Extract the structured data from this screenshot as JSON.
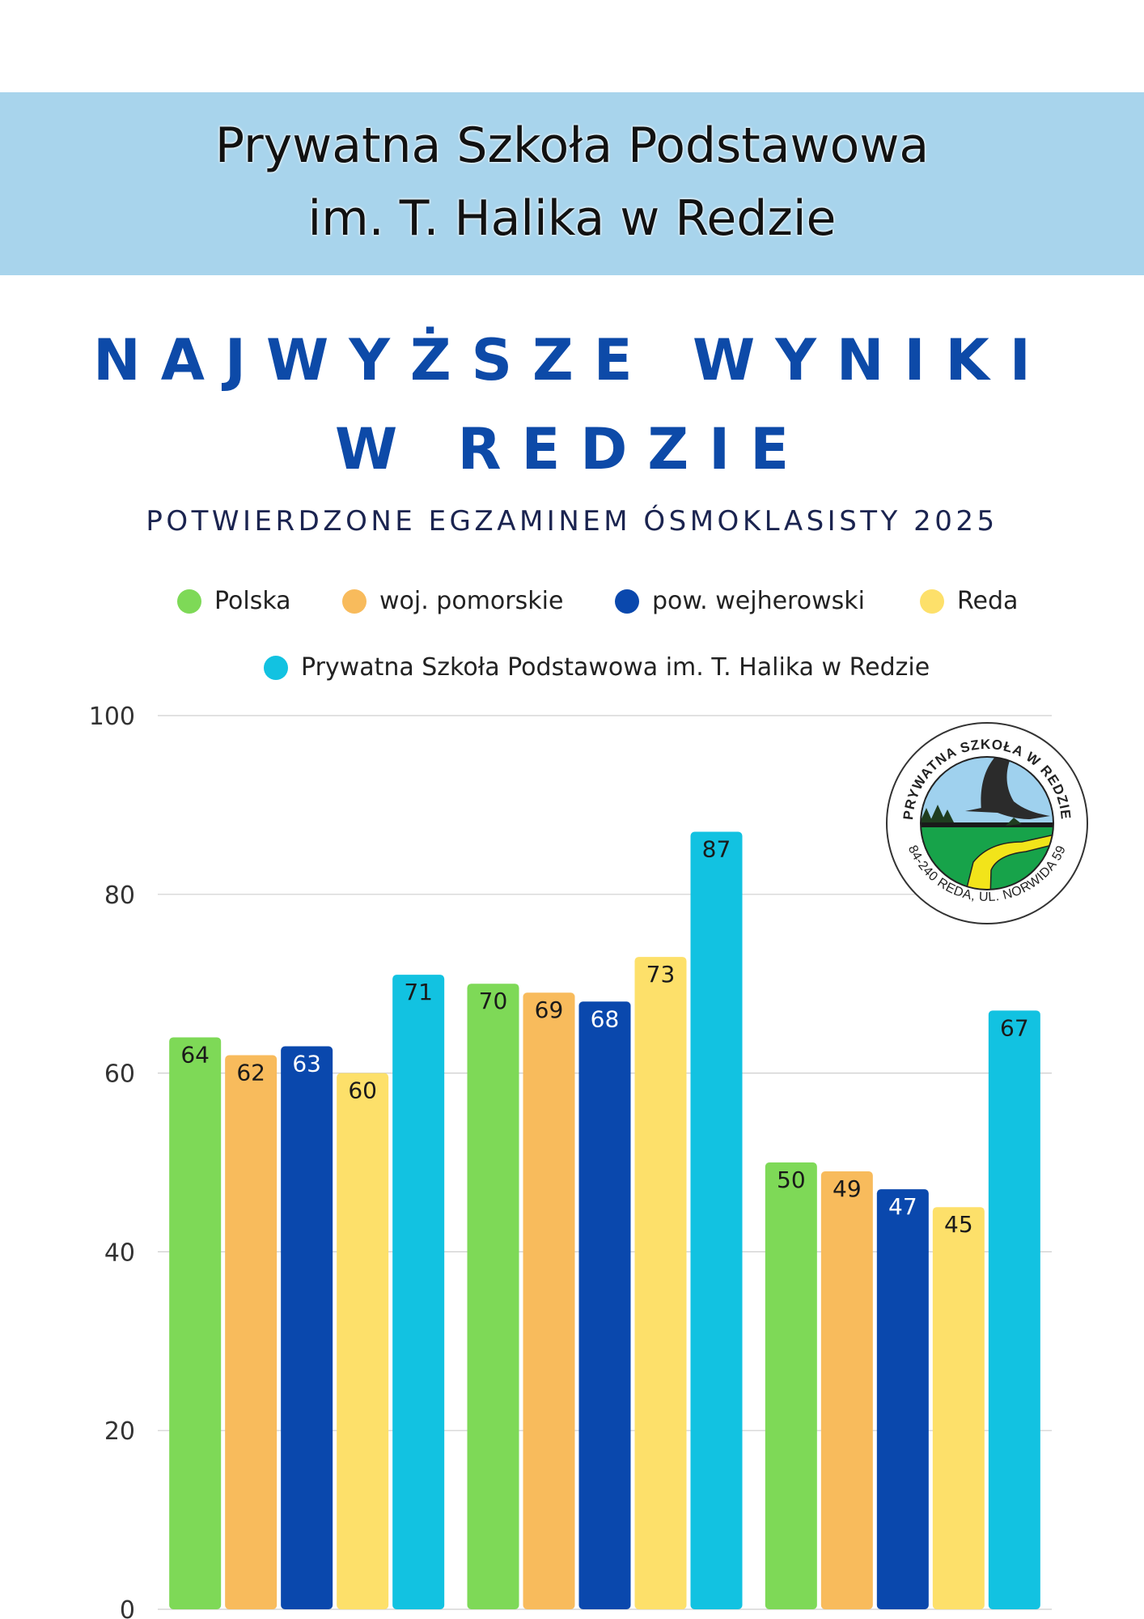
{
  "header": {
    "line1": "Prywatna Szkoła Podstawowa",
    "line2": "im. T. Halika w Redzie",
    "background": "#a8d4ec"
  },
  "headline": {
    "line1": "NAJWYŻSZE WYNIKI",
    "line2": "W REDZIE",
    "subtitle": "POTWIERDZONE EGZAMINEM ÓSMOKLASISTY 2025",
    "color": "#0d4aa8"
  },
  "logo": {
    "top_text": "PRYWATNA SZKOŁA W REDZIE",
    "bottom_text": "84-240 REDA, UL. NORWIDA 59",
    "icon": "heron-school-logo"
  },
  "chart_data": {
    "type": "bar",
    "categories": [
      "",
      "",
      ""
    ],
    "ylim": [
      0,
      100
    ],
    "yticks": [
      0,
      20,
      40,
      60,
      80,
      100
    ],
    "grid": true,
    "legend_position": "top",
    "series": [
      {
        "name": "Polska",
        "color": "#7ed957",
        "values": [
          64,
          70,
          50
        ]
      },
      {
        "name": "woj. pomorskie",
        "color": "#f8bb5c",
        "values": [
          62,
          69,
          49
        ]
      },
      {
        "name": "pow. wejherowski",
        "color": "#0a48ad",
        "values": [
          63,
          68,
          47
        ]
      },
      {
        "name": "Reda",
        "color": "#fde06a",
        "values": [
          60,
          73,
          45
        ]
      },
      {
        "name": "Prywatna Szkoła Podstawowa im. T. Halika w Redzie",
        "color": "#12c2e1",
        "values": [
          71,
          87,
          67
        ]
      }
    ]
  }
}
